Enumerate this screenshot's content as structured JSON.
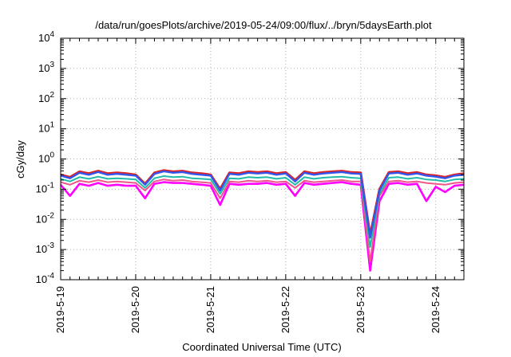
{
  "chart_data": {
    "type": "line",
    "title": "/data/run/goesPlots/archive/2019-05-24/09:00/flux/../bryn/5daysEarth.plot",
    "xlabel": "Coordinated Universal Time (UTC)",
    "ylabel": "cGy/day",
    "yscale": "log",
    "ylim": [
      0.0001,
      10000
    ],
    "xlim": [
      "2019-05-19T00:00",
      "2019-05-24T09:00"
    ],
    "x_ticks": [
      "2019-5-19",
      "2019-5-20",
      "2019-5-21",
      "2019-5-22",
      "2019-5-23",
      "2019-5-24"
    ],
    "y_ticks": [
      {
        "base": "10",
        "exp": "-4",
        "value": 0.0001
      },
      {
        "base": "10",
        "exp": "-3",
        "value": 0.001
      },
      {
        "base": "10",
        "exp": "-2",
        "value": 0.01
      },
      {
        "base": "10",
        "exp": "-1",
        "value": 0.1
      },
      {
        "base": "10",
        "exp": "0",
        "value": 1
      },
      {
        "base": "10",
        "exp": "1",
        "value": 10
      },
      {
        "base": "10",
        "exp": "2",
        "value": 100
      },
      {
        "base": "10",
        "exp": "3",
        "value": 1000
      },
      {
        "base": "10",
        "exp": "4",
        "value": 10000
      }
    ],
    "grid": true,
    "legend": "none",
    "series_colors": [
      "#dd2222",
      "#3355ee",
      "#22bbaa",
      "#ee5588",
      "#ff00ff"
    ],
    "x": [
      "2019-05-19T00:00",
      "2019-05-19T03:00",
      "2019-05-19T06:00",
      "2019-05-19T09:00",
      "2019-05-19T12:00",
      "2019-05-19T15:00",
      "2019-05-19T18:00",
      "2019-05-19T21:00",
      "2019-05-20T00:00",
      "2019-05-20T03:00",
      "2019-05-20T06:00",
      "2019-05-20T09:00",
      "2019-05-20T12:00",
      "2019-05-20T15:00",
      "2019-05-20T18:00",
      "2019-05-20T21:00",
      "2019-05-21T00:00",
      "2019-05-21T03:00",
      "2019-05-21T06:00",
      "2019-05-21T09:00",
      "2019-05-21T12:00",
      "2019-05-21T15:00",
      "2019-05-21T18:00",
      "2019-05-21T21:00",
      "2019-05-22T00:00",
      "2019-05-22T03:00",
      "2019-05-22T06:00",
      "2019-05-22T09:00",
      "2019-05-22T12:00",
      "2019-05-22T15:00",
      "2019-05-22T18:00",
      "2019-05-22T21:00",
      "2019-05-23T00:00",
      "2019-05-23T03:00",
      "2019-05-23T06:00",
      "2019-05-23T09:00",
      "2019-05-23T12:00",
      "2019-05-23T15:00",
      "2019-05-23T18:00",
      "2019-05-23T21:00",
      "2019-05-24T00:00",
      "2019-05-24T03:00",
      "2019-05-24T06:00",
      "2019-05-24T09:00"
    ],
    "series": [
      {
        "values": [
          0.3,
          0.25,
          0.38,
          0.33,
          0.4,
          0.33,
          0.35,
          0.33,
          0.3,
          0.15,
          0.35,
          0.42,
          0.38,
          0.4,
          0.35,
          0.33,
          0.3,
          0.1,
          0.35,
          0.33,
          0.38,
          0.36,
          0.38,
          0.33,
          0.36,
          0.2,
          0.38,
          0.33,
          0.36,
          0.38,
          0.4,
          0.36,
          0.35,
          0.003,
          0.1,
          0.36,
          0.38,
          0.33,
          0.36,
          0.3,
          0.28,
          0.25,
          0.3,
          0.33
        ]
      },
      {
        "values": [
          0.28,
          0.23,
          0.35,
          0.3,
          0.37,
          0.3,
          0.32,
          0.3,
          0.28,
          0.14,
          0.32,
          0.39,
          0.35,
          0.37,
          0.32,
          0.3,
          0.28,
          0.09,
          0.32,
          0.3,
          0.35,
          0.33,
          0.35,
          0.3,
          0.33,
          0.18,
          0.35,
          0.3,
          0.33,
          0.35,
          0.37,
          0.33,
          0.32,
          0.0025,
          0.09,
          0.33,
          0.35,
          0.3,
          0.33,
          0.28,
          0.26,
          0.23,
          0.28,
          0.3
        ]
      },
      {
        "values": [
          0.22,
          0.18,
          0.25,
          0.22,
          0.26,
          0.22,
          0.23,
          0.22,
          0.21,
          0.11,
          0.23,
          0.27,
          0.25,
          0.26,
          0.23,
          0.22,
          0.21,
          0.07,
          0.23,
          0.22,
          0.25,
          0.24,
          0.25,
          0.22,
          0.24,
          0.14,
          0.25,
          0.22,
          0.24,
          0.25,
          0.26,
          0.24,
          0.23,
          0.0012,
          0.07,
          0.24,
          0.25,
          0.22,
          0.24,
          0.21,
          0.2,
          0.18,
          0.21,
          0.22
        ]
      },
      {
        "values": [
          0.17,
          0.14,
          0.19,
          0.17,
          0.2,
          0.17,
          0.18,
          0.17,
          0.16,
          0.09,
          0.18,
          0.21,
          0.19,
          0.2,
          0.18,
          0.17,
          0.16,
          0.05,
          0.18,
          0.17,
          0.19,
          0.18,
          0.19,
          0.17,
          0.18,
          0.11,
          0.19,
          0.17,
          0.18,
          0.19,
          0.2,
          0.18,
          0.18,
          0.0004,
          0.06,
          0.18,
          0.19,
          0.17,
          0.18,
          0.16,
          0.15,
          0.14,
          0.16,
          0.17
        ]
      },
      {
        "values": [
          0.14,
          0.06,
          0.15,
          0.13,
          0.16,
          0.13,
          0.14,
          0.13,
          0.13,
          0.05,
          0.15,
          0.17,
          0.16,
          0.16,
          0.15,
          0.14,
          0.13,
          0.03,
          0.15,
          0.14,
          0.15,
          0.15,
          0.16,
          0.14,
          0.15,
          0.06,
          0.16,
          0.14,
          0.15,
          0.16,
          0.17,
          0.15,
          0.14,
          0.0002,
          0.04,
          0.15,
          0.16,
          0.14,
          0.15,
          0.04,
          0.12,
          0.08,
          0.13,
          0.14
        ]
      }
    ]
  }
}
